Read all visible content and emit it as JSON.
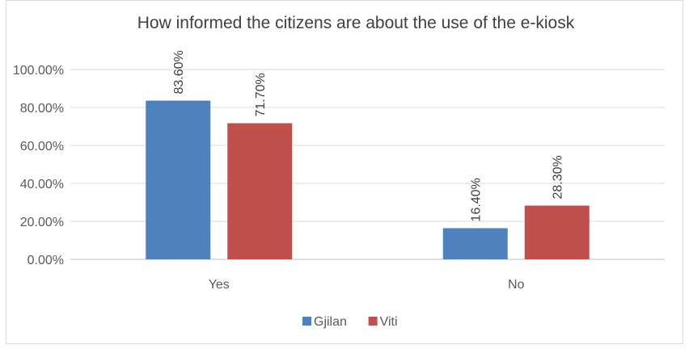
{
  "chart_data": {
    "type": "bar",
    "title": "How informed the citizens are about the use of the e-kiosk",
    "categories": [
      "Yes",
      "No"
    ],
    "series": [
      {
        "name": "Gjilan",
        "values": [
          0.836,
          0.164
        ],
        "labels": [
          "83.60%",
          "16.40%"
        ],
        "color": "#4f81bd"
      },
      {
        "name": "Viti",
        "values": [
          0.717,
          0.283
        ],
        "labels": [
          "71.70%",
          "28.30%"
        ],
        "color": "#c0504d"
      }
    ],
    "ylim": [
      0,
      1.0
    ],
    "yticks": [
      0,
      0.2,
      0.4,
      0.6,
      0.8,
      1.0
    ],
    "ytick_labels": [
      "0.00%",
      "20.00%",
      "40.00%",
      "60.00%",
      "80.00%",
      "100.00%"
    ],
    "grid": true,
    "legend": "bottom"
  }
}
